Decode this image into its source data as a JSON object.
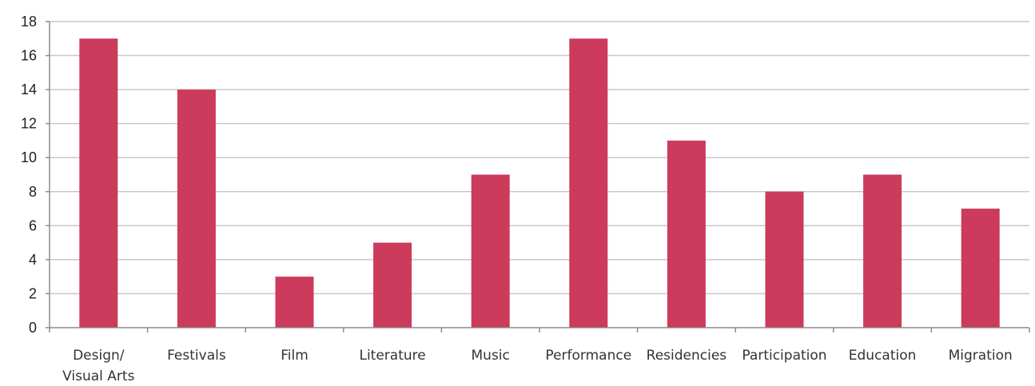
{
  "chart_data": {
    "type": "bar",
    "categories": [
      [
        "Design/",
        "Visual Arts"
      ],
      [
        "Festivals"
      ],
      [
        "Film"
      ],
      [
        "Literature"
      ],
      [
        "Music"
      ],
      [
        "Performance"
      ],
      [
        "Residencies"
      ],
      [
        "Participation"
      ],
      [
        "Education"
      ],
      [
        "Migration"
      ]
    ],
    "values": [
      17,
      14,
      3,
      5,
      9,
      17,
      11,
      8,
      9,
      7
    ],
    "ylim": [
      0,
      18
    ],
    "yticks": [
      0,
      2,
      4,
      6,
      8,
      10,
      12,
      14,
      16,
      18
    ],
    "grid": true,
    "legend": "none",
    "title": "",
    "xlabel": "",
    "ylabel": "",
    "colors": {
      "bar": "#cc3a5c",
      "grid": "#c8c8c8",
      "axis": "#8c8c8c"
    }
  }
}
